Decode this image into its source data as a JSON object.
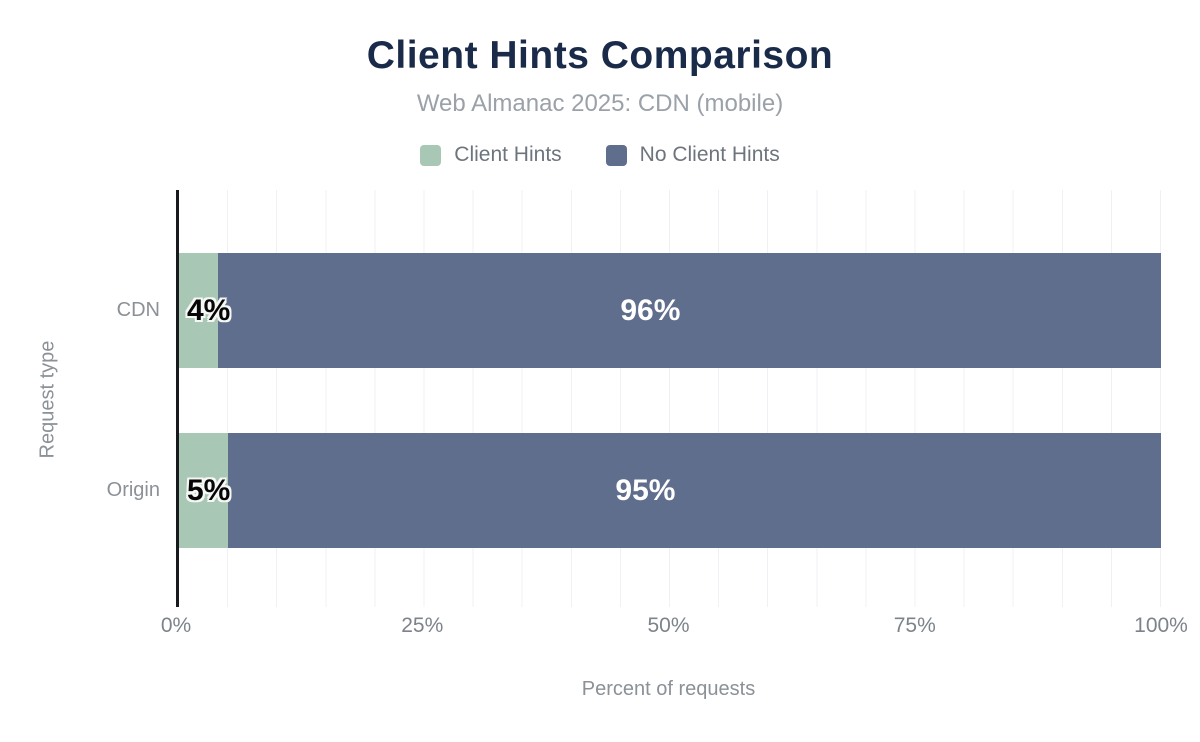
{
  "chart_data": {
    "type": "bar",
    "orientation": "horizontal",
    "stacked": true,
    "title": "Client Hints Comparison",
    "subtitle": "Web Almanac 2025: CDN (mobile)",
    "xlabel": "Percent of requests",
    "ylabel": "Request type",
    "xlim": [
      0,
      100
    ],
    "xticks": [
      "0%",
      "25%",
      "50%",
      "75%",
      "100%"
    ],
    "grid": "vertical gridlines every 5%, light gray",
    "legend_position": "top",
    "categories": [
      "CDN",
      "Origin"
    ],
    "series": [
      {
        "name": "Client Hints",
        "color": "#a8c7b4",
        "values": [
          4,
          5
        ]
      },
      {
        "name": "No Client Hints",
        "color": "#5f6e8c",
        "values": [
          96,
          95
        ]
      }
    ],
    "rows": [
      {
        "category": "CDN",
        "values": [
          4,
          96
        ],
        "labels": [
          "4%",
          "96%"
        ]
      },
      {
        "category": "Origin",
        "values": [
          5,
          95
        ],
        "labels": [
          "5%",
          "95%"
        ]
      }
    ],
    "colors": {
      "client_hints": "#a8c7b4",
      "no_client_hints": "#5f6e8c",
      "title_text": "#1a2b49",
      "subtitle_text": "#9aa1a8",
      "axis_text": "#8b9196",
      "tick_text": "#7d838b",
      "axis_line": "#17191c",
      "gridline": "#f1f1f4",
      "value_label_dark": "#060606",
      "value_label_light": "#ffffff"
    }
  }
}
